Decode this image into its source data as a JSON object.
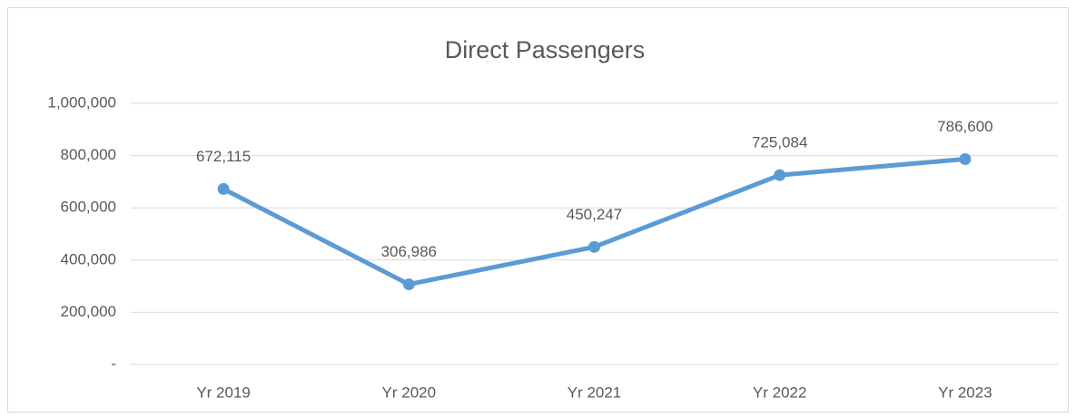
{
  "chart_data": {
    "type": "line",
    "title": "Direct Passengers",
    "categories": [
      "Yr 2019",
      "Yr 2020",
      "Yr 2021",
      "Yr 2022",
      "Yr 2023"
    ],
    "series": [
      {
        "name": "Direct Passengers",
        "color": "#5b9bd5",
        "values": [
          672115,
          306986,
          450247,
          725084,
          786600
        ],
        "value_labels": [
          "672,115",
          "306,986",
          "450,247",
          "725,084",
          "786,600"
        ]
      }
    ],
    "ylim": [
      0,
      1000000
    ],
    "yticks": [
      {
        "value": 0,
        "label": "-"
      },
      {
        "value": 200000,
        "label": "200,000"
      },
      {
        "value": 400000,
        "label": "400,000"
      },
      {
        "value": 600000,
        "label": "600,000"
      },
      {
        "value": 800000,
        "label": "800,000"
      },
      {
        "value": 1000000,
        "label": "1,000,000"
      }
    ],
    "grid": true
  }
}
